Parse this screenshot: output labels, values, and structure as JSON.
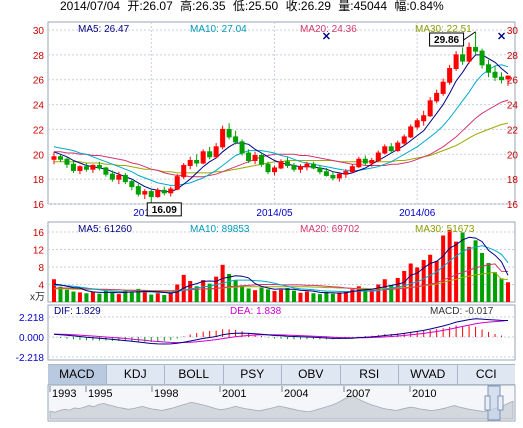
{
  "header": {
    "date": "2014/07/04",
    "open_label": "开:",
    "open": "26.07",
    "high_label": "高:",
    "high": "26.35",
    "low_label": "低:",
    "low": "25.50",
    "close_label": "收:",
    "close": "26.29",
    "volume_label": "量:",
    "volume": "45044",
    "change_label": "幅:",
    "change": "0.84%"
  },
  "price_panel": {
    "ma_labels": [
      {
        "text": "MA5: 26.47",
        "color": "#000080"
      },
      {
        "text": "MA10: 27.04",
        "color": "#009ab8"
      },
      {
        "text": "MA20: 24.36",
        "color": "#d6356c"
      },
      {
        "text": "MA30: 22.51",
        "color": "#8c9c00"
      }
    ],
    "y_ticks": [
      "30",
      "28",
      "26",
      "24",
      "22",
      "20",
      "18",
      "16"
    ],
    "x_labels": [
      "2014/04",
      "2014/05",
      "2014/06"
    ],
    "high_annotation": "29.86",
    "low_annotation": "16.09"
  },
  "volume_panel": {
    "ma_labels": [
      {
        "text": "MA5: 61260",
        "color": "#000080"
      },
      {
        "text": "MA10: 89853",
        "color": "#009ab8"
      },
      {
        "text": "MA20: 69702",
        "color": "#d6356c"
      },
      {
        "text": "MA30: 51673",
        "color": "#8c9c00"
      }
    ],
    "y_ticks": [
      "16",
      "12",
      "8",
      "4"
    ],
    "unit": "x万"
  },
  "macd_panel": {
    "dif_label": "DIF: 1.829",
    "dea_label": "DEA: 1.838",
    "macd_label": "MACD: -0.017",
    "y_ticks": [
      "2.218",
      "0.000",
      "-2.218"
    ]
  },
  "tabs": [
    "MACD",
    "KDJ",
    "BOLL",
    "PSY",
    "OBV",
    "RSI",
    "WVAD",
    "CCI"
  ],
  "active_tab": "MACD",
  "overview_years": [
    "1993",
    "1995",
    "1998",
    "2001",
    "2004",
    "2007",
    "2010"
  ],
  "colors": {
    "up": "#ff0000",
    "down": "#00a000",
    "ma5": "#000080",
    "ma10": "#00aacc",
    "ma20": "#d6356c",
    "ma30": "#9aaa00",
    "grid": "#c8d0dc",
    "axis_text_red": "#cc0000",
    "axis_text_blue": "#0000cc"
  },
  "chart_data": {
    "type": "candlestick",
    "title": "",
    "x_tick_labels": [
      "2014/04",
      "2014/05",
      "2014/06"
    ],
    "y_range": [
      16,
      30
    ],
    "candles": [
      [
        19.6,
        20.2,
        19.2,
        19.8
      ],
      [
        19.8,
        20.0,
        19.4,
        19.6
      ],
      [
        19.6,
        19.8,
        18.9,
        19.2
      ],
      [
        19.2,
        19.5,
        18.5,
        18.7
      ],
      [
        18.7,
        19.1,
        18.4,
        19.0
      ],
      [
        19.0,
        19.3,
        18.6,
        18.8
      ],
      [
        18.8,
        19.2,
        18.5,
        19.1
      ],
      [
        19.1,
        19.4,
        18.7,
        18.9
      ],
      [
        18.9,
        19.0,
        18.2,
        18.4
      ],
      [
        18.4,
        18.7,
        17.8,
        18.0
      ],
      [
        18.0,
        18.6,
        17.6,
        18.3
      ],
      [
        18.3,
        18.5,
        17.6,
        17.8
      ],
      [
        17.8,
        18.0,
        17.1,
        17.4
      ],
      [
        17.4,
        17.6,
        16.6,
        16.8
      ],
      [
        16.8,
        17.2,
        16.4,
        17.0
      ],
      [
        17.0,
        17.2,
        16.09,
        16.6
      ],
      [
        16.6,
        17.3,
        16.5,
        17.1
      ],
      [
        17.1,
        17.4,
        16.7,
        16.9
      ],
      [
        16.9,
        17.4,
        16.6,
        17.2
      ],
      [
        17.2,
        18.4,
        17.1,
        18.2
      ],
      [
        18.2,
        19.3,
        18.0,
        19.1
      ],
      [
        19.1,
        19.8,
        18.8,
        19.5
      ],
      [
        19.5,
        20.0,
        19.0,
        19.3
      ],
      [
        19.3,
        20.4,
        19.2,
        20.2
      ],
      [
        20.2,
        20.6,
        19.6,
        19.8
      ],
      [
        19.8,
        20.9,
        19.7,
        20.6
      ],
      [
        20.6,
        22.3,
        20.4,
        22.0
      ],
      [
        22.0,
        22.5,
        21.2,
        21.4
      ],
      [
        21.4,
        21.9,
        20.8,
        21.0
      ],
      [
        21.0,
        21.2,
        19.9,
        20.1
      ],
      [
        20.1,
        20.4,
        19.3,
        19.5
      ],
      [
        19.5,
        20.2,
        19.2,
        19.9
      ],
      [
        19.9,
        20.1,
        19.0,
        19.2
      ],
      [
        19.2,
        19.4,
        18.4,
        18.6
      ],
      [
        18.6,
        19.1,
        18.3,
        18.9
      ],
      [
        18.9,
        19.6,
        18.8,
        19.4
      ],
      [
        19.4,
        19.8,
        18.9,
        19.1
      ],
      [
        19.1,
        19.3,
        18.6,
        18.8
      ],
      [
        18.8,
        19.2,
        18.5,
        19.0
      ],
      [
        19.0,
        19.4,
        18.7,
        19.2
      ],
      [
        19.2,
        19.4,
        18.8,
        18.9
      ],
      [
        18.9,
        19.1,
        18.4,
        18.6
      ],
      [
        18.6,
        18.9,
        18.2,
        18.3
      ],
      [
        18.3,
        18.6,
        17.9,
        18.1
      ],
      [
        18.1,
        18.5,
        17.8,
        18.4
      ],
      [
        18.4,
        18.8,
        18.1,
        18.6
      ],
      [
        18.6,
        19.2,
        18.5,
        19.0
      ],
      [
        19.0,
        19.8,
        18.9,
        19.6
      ],
      [
        19.6,
        19.9,
        19.1,
        19.3
      ],
      [
        19.3,
        19.7,
        19.0,
        19.5
      ],
      [
        19.5,
        20.3,
        19.4,
        20.1
      ],
      [
        20.1,
        20.8,
        20.0,
        20.6
      ],
      [
        20.6,
        20.9,
        20.1,
        20.3
      ],
      [
        20.3,
        21.1,
        20.2,
        20.9
      ],
      [
        20.9,
        21.6,
        20.7,
        21.4
      ],
      [
        21.4,
        22.4,
        21.3,
        22.2
      ],
      [
        22.2,
        22.9,
        22.0,
        22.7
      ],
      [
        22.7,
        23.5,
        22.3,
        23.1
      ],
      [
        23.1,
        24.6,
        23.0,
        24.3
      ],
      [
        24.3,
        25.2,
        24.1,
        24.9
      ],
      [
        24.9,
        26.1,
        24.7,
        25.8
      ],
      [
        25.8,
        27.2,
        25.6,
        26.9
      ],
      [
        26.9,
        28.3,
        26.7,
        28.0
      ],
      [
        28.0,
        28.6,
        27.2,
        27.5
      ],
      [
        27.5,
        29.0,
        27.3,
        28.6
      ],
      [
        28.6,
        29.86,
        28.0,
        28.3
      ],
      [
        28.3,
        28.5,
        26.9,
        27.2
      ],
      [
        27.2,
        27.6,
        26.2,
        26.6
      ],
      [
        26.6,
        27.1,
        25.9,
        26.2
      ],
      [
        26.2,
        26.6,
        25.7,
        26.0
      ],
      [
        26.07,
        26.35,
        25.5,
        26.29
      ]
    ],
    "ma5": [
      20.2,
      20.0,
      19.8,
      19.5,
      19.3,
      19.1,
      19.0,
      18.9,
      18.8,
      18.6,
      18.4,
      18.2,
      18.0,
      17.7,
      17.4,
      17.2,
      17.1,
      17.0,
      17.0,
      17.2,
      17.6,
      18.0,
      18.5,
      19.0,
      19.4,
      19.7,
      20.2,
      20.6,
      20.9,
      20.9,
      20.8,
      20.4,
      20.1,
      19.8,
      19.5,
      19.3,
      19.2,
      19.1,
      19.0,
      19.0,
      19.0,
      18.9,
      18.8,
      18.6,
      18.5,
      18.4,
      18.5,
      18.7,
      18.9,
      19.2,
      19.5,
      19.8,
      20.1,
      20.4,
      20.7,
      21.1,
      21.5,
      21.9,
      22.6,
      23.3,
      24.0,
      24.9,
      25.9,
      26.6,
      27.4,
      28.0,
      28.0,
      27.7,
      27.4,
      26.9,
      26.47
    ],
    "ma10": [
      20.6,
      20.5,
      20.4,
      20.3,
      20.1,
      20.0,
      19.8,
      19.6,
      19.4,
      19.2,
      19.0,
      18.8,
      18.6,
      18.3,
      18.1,
      17.9,
      17.7,
      17.6,
      17.5,
      17.5,
      17.6,
      17.7,
      17.9,
      18.1,
      18.4,
      18.7,
      19.1,
      19.5,
      19.9,
      20.1,
      20.3,
      20.3,
      20.3,
      20.2,
      20.1,
      19.9,
      19.8,
      19.6,
      19.4,
      19.3,
      19.2,
      19.1,
      19.0,
      18.9,
      18.8,
      18.7,
      18.7,
      18.7,
      18.8,
      18.9,
      19.0,
      19.2,
      19.4,
      19.7,
      20.0,
      20.3,
      20.6,
      21.0,
      21.4,
      21.8,
      22.3,
      22.9,
      23.6,
      24.3,
      25.0,
      25.8,
      26.4,
      26.8,
      27.1,
      27.2,
      27.04
    ],
    "ma20": [
      20.2,
      20.2,
      20.1,
      20.1,
      20.0,
      20.0,
      19.9,
      19.9,
      19.8,
      19.7,
      19.6,
      19.5,
      19.3,
      19.2,
      19.0,
      18.8,
      18.7,
      18.5,
      18.4,
      18.3,
      18.3,
      18.2,
      18.2,
      18.2,
      18.3,
      18.4,
      18.6,
      18.8,
      19.0,
      19.2,
      19.4,
      19.6,
      19.8,
      19.9,
      20.0,
      20.0,
      20.0,
      20.0,
      19.9,
      19.9,
      19.8,
      19.7,
      19.6,
      19.5,
      19.4,
      19.3,
      19.2,
      19.2,
      19.1,
      19.1,
      19.1,
      19.1,
      19.2,
      19.2,
      19.3,
      19.4,
      19.6,
      19.8,
      20.0,
      20.3,
      20.6,
      21.0,
      21.4,
      21.9,
      22.4,
      22.9,
      23.3,
      23.6,
      23.9,
      24.2,
      24.36
    ],
    "ma30": [
      19.4,
      19.4,
      19.4,
      19.4,
      19.4,
      19.3,
      19.3,
      19.3,
      19.2,
      19.2,
      19.1,
      19.1,
      19.0,
      18.9,
      18.8,
      18.8,
      18.7,
      18.6,
      18.6,
      18.5,
      18.5,
      18.5,
      18.5,
      18.5,
      18.5,
      18.6,
      18.6,
      18.7,
      18.8,
      18.9,
      19.0,
      19.1,
      19.2,
      19.3,
      19.4,
      19.4,
      19.5,
      19.5,
      19.5,
      19.5,
      19.5,
      19.5,
      19.5,
      19.5,
      19.4,
      19.4,
      19.4,
      19.4,
      19.4,
      19.4,
      19.4,
      19.4,
      19.4,
      19.5,
      19.5,
      19.6,
      19.7,
      19.8,
      19.9,
      20.1,
      20.3,
      20.5,
      20.7,
      21.0,
      21.3,
      21.6,
      21.8,
      22.0,
      22.2,
      22.4,
      22.51
    ],
    "volume": [
      5.2,
      3.5,
      2.8,
      2.4,
      2.2,
      2.0,
      2.3,
      1.9,
      2.5,
      2.1,
      1.8,
      2.6,
      2.2,
      3.0,
      2.4,
      1.7,
      2.0,
      1.6,
      2.2,
      4.0,
      6.2,
      4.8,
      3.6,
      5.0,
      4.2,
      5.8,
      8.5,
      6.4,
      4.9,
      3.8,
      3.1,
      2.7,
      3.3,
      2.9,
      2.5,
      2.8,
      3.2,
      2.6,
      2.1,
      2.4,
      2.0,
      1.8,
      2.3,
      1.9,
      2.2,
      2.5,
      2.9,
      3.6,
      3.0,
      2.7,
      4.0,
      5.2,
      3.9,
      5.5,
      7.1,
      8.8,
      7.9,
      9.6,
      10.8,
      9.4,
      15.2,
      16.5,
      13.8,
      15.9,
      12.6,
      14.1,
      11.2,
      8.9,
      6.8,
      5.4,
      4.5
    ],
    "volume_ma5": [
      4.1,
      3.9,
      3.6,
      3.3,
      3.2,
      2.6,
      2.3,
      2.2,
      2.2,
      2.2,
      2.1,
      2.2,
      2.3,
      2.3,
      2.4,
      2.4,
      2.3,
      2.2,
      2.0,
      2.3,
      3.2,
      3.8,
      4.2,
      4.7,
      4.8,
      4.7,
      5.4,
      5.7,
      6.0,
      5.9,
      5.5,
      4.2,
      3.6,
      3.2,
      2.9,
      3.0,
      2.9,
      2.9,
      2.7,
      2.6,
      2.5,
      2.2,
      2.1,
      2.1,
      2.0,
      2.1,
      2.4,
      2.6,
      2.8,
      2.9,
      3.2,
      3.5,
      3.8,
      4.1,
      4.5,
      6.1,
      6.6,
      7.8,
      8.8,
      9.3,
      10.5,
      12.3,
      13.1,
      14.2,
      14.8,
      14.6,
      13.8,
      11.8,
      10.7,
      9.2,
      6.1
    ],
    "volume_ma10": [
      3.8,
      3.8,
      3.7,
      3.6,
      3.4,
      3.2,
      3.0,
      2.8,
      2.6,
      2.5,
      2.4,
      2.3,
      2.3,
      2.3,
      2.3,
      2.3,
      2.2,
      2.2,
      2.2,
      2.4,
      2.7,
      3.0,
      3.2,
      3.5,
      3.6,
      3.9,
      4.3,
      4.7,
      5.0,
      5.0,
      5.0,
      4.9,
      4.8,
      4.6,
      4.3,
      3.9,
      3.6,
      3.2,
      3.0,
      2.9,
      2.8,
      2.6,
      2.5,
      2.5,
      2.4,
      2.4,
      2.4,
      2.5,
      2.5,
      2.5,
      2.6,
      2.9,
      3.2,
      3.4,
      3.7,
      4.2,
      4.6,
      5.3,
      6.1,
      6.9,
      8.1,
      9.4,
      10.5,
      11.5,
      12.2,
      12.5,
      12.9,
      12.4,
      11.8,
      10.9,
      8.99
    ],
    "volume_ma20": [
      3.2,
      3.2,
      3.2,
      3.1,
      3.1,
      3.0,
      3.0,
      2.9,
      2.9,
      2.8,
      2.8,
      2.7,
      2.7,
      2.6,
      2.6,
      2.5,
      2.5,
      2.5,
      2.5,
      2.6,
      2.7,
      2.8,
      2.9,
      3.0,
      3.0,
      3.1,
      3.3,
      3.5,
      3.6,
      3.7,
      3.8,
      3.9,
      4.0,
      4.0,
      4.0,
      3.9,
      3.9,
      3.9,
      3.9,
      3.8,
      3.8,
      3.7,
      3.6,
      3.5,
      3.4,
      3.2,
      3.1,
      2.9,
      2.8,
      2.7,
      2.7,
      2.8,
      2.9,
      3.0,
      3.1,
      3.3,
      3.5,
      3.8,
      4.1,
      4.4,
      5.0,
      5.6,
      6.2,
      6.8,
      7.3,
      7.8,
      8.2,
      8.5,
      8.7,
      7.0,
      6.97
    ],
    "volume_ma30": [
      3.0,
      3.0,
      3.0,
      2.9,
      2.9,
      2.9,
      2.9,
      2.8,
      2.8,
      2.8,
      2.8,
      2.7,
      2.7,
      2.7,
      2.7,
      2.6,
      2.6,
      2.6,
      2.6,
      2.7,
      2.8,
      2.8,
      2.9,
      3.0,
      3.0,
      3.1,
      3.2,
      3.3,
      3.4,
      3.5,
      3.5,
      3.5,
      3.5,
      3.5,
      3.5,
      3.5,
      3.5,
      3.5,
      3.5,
      3.5,
      3.4,
      3.4,
      3.3,
      3.3,
      3.2,
      3.2,
      3.1,
      3.1,
      3.1,
      3.0,
      3.0,
      3.1,
      3.1,
      3.2,
      3.3,
      3.4,
      3.5,
      3.7,
      3.9,
      4.1,
      4.5,
      4.9,
      5.2,
      5.6,
      5.9,
      6.2,
      6.4,
      6.6,
      6.8,
      5.2,
      5.17
    ],
    "dif": [
      0.3,
      0.26,
      0.2,
      0.12,
      0.05,
      -0.02,
      -0.08,
      -0.14,
      -0.2,
      -0.27,
      -0.33,
      -0.4,
      -0.47,
      -0.56,
      -0.64,
      -0.72,
      -0.76,
      -0.78,
      -0.77,
      -0.7,
      -0.58,
      -0.44,
      -0.31,
      -0.16,
      -0.05,
      0.06,
      0.25,
      0.36,
      0.42,
      0.43,
      0.4,
      0.36,
      0.31,
      0.23,
      0.17,
      0.14,
      0.09,
      0.05,
      0.02,
      0.0,
      -0.03,
      -0.07,
      -0.11,
      -0.15,
      -0.16,
      -0.16,
      -0.13,
      -0.07,
      -0.03,
      0.01,
      0.08,
      0.17,
      0.23,
      0.31,
      0.4,
      0.51,
      0.62,
      0.73,
      0.89,
      1.05,
      1.22,
      1.42,
      1.65,
      1.78,
      1.93,
      2.02,
      1.99,
      1.93,
      1.88,
      1.84,
      1.829
    ],
    "dea": [
      0.32,
      0.31,
      0.29,
      0.25,
      0.21,
      0.16,
      0.11,
      0.06,
      0.0,
      -0.05,
      -0.11,
      -0.17,
      -0.23,
      -0.3,
      -0.37,
      -0.44,
      -0.5,
      -0.56,
      -0.6,
      -0.62,
      -0.61,
      -0.58,
      -0.53,
      -0.46,
      -0.38,
      -0.29,
      -0.18,
      -0.07,
      0.03,
      0.11,
      0.17,
      0.22,
      0.25,
      0.26,
      0.25,
      0.23,
      0.21,
      0.18,
      0.15,
      0.12,
      0.09,
      0.06,
      0.02,
      -0.02,
      -0.05,
      -0.07,
      -0.09,
      -0.09,
      -0.08,
      -0.06,
      -0.03,
      0.01,
      0.06,
      0.11,
      0.17,
      0.24,
      0.32,
      0.4,
      0.5,
      0.61,
      0.73,
      0.87,
      1.02,
      1.17,
      1.32,
      1.46,
      1.57,
      1.65,
      1.71,
      1.76,
      1.838
    ],
    "macd": [
      -0.02,
      -0.05,
      -0.09,
      -0.13,
      -0.16,
      -0.18,
      -0.19,
      -0.2,
      -0.2,
      -0.22,
      -0.22,
      -0.23,
      -0.24,
      -0.26,
      -0.27,
      -0.28,
      -0.26,
      -0.22,
      -0.17,
      -0.08,
      0.03,
      0.14,
      0.22,
      0.3,
      0.33,
      0.35,
      0.43,
      0.43,
      0.39,
      0.32,
      0.23,
      0.14,
      0.06,
      -0.03,
      -0.08,
      -0.09,
      -0.12,
      -0.13,
      -0.13,
      -0.12,
      -0.12,
      -0.13,
      -0.13,
      -0.13,
      -0.11,
      -0.09,
      -0.04,
      0.02,
      0.05,
      0.07,
      0.11,
      0.16,
      0.17,
      0.2,
      0.23,
      0.27,
      0.3,
      0.33,
      0.39,
      0.44,
      0.49,
      0.55,
      0.63,
      0.61,
      0.61,
      0.56,
      0.42,
      0.28,
      0.17,
      0.08,
      -0.017
    ],
    "overview": [
      2.1,
      1.8,
      2.3,
      2.6,
      2.4,
      3.0,
      2.8,
      3.2,
      3.6,
      3.3,
      3.9,
      4.2,
      3.8,
      3.5,
      3.1,
      2.9,
      2.6,
      2.8,
      3.1,
      3.4,
      3.0,
      2.7,
      2.5,
      2.3,
      2.6,
      2.9,
      3.3,
      3.7,
      4.1,
      4.5,
      4.2,
      3.9,
      3.6,
      3.2,
      2.8,
      2.5,
      2.7,
      3.0,
      3.4,
      3.1,
      2.8,
      2.6,
      2.4,
      2.2,
      2.5,
      2.8,
      3.1,
      3.5,
      3.2,
      2.9,
      2.6,
      2.3,
      2.1,
      1.9,
      2.2,
      2.6,
      3.0,
      3.4,
      3.8,
      4.4,
      5.1,
      5.8,
      6.4,
      5.6,
      4.9,
      4.3,
      3.8,
      3.4,
      3.0,
      2.7,
      2.5,
      2.3,
      2.6,
      2.9,
      3.2,
      3.0,
      2.7,
      2.5,
      2.3,
      2.4,
      2.6,
      2.9,
      3.3,
      3.6,
      3.2,
      2.9,
      2.6,
      2.4,
      2.2,
      2.0,
      2.3,
      2.7,
      3.1,
      3.6,
      4.2,
      4.8
    ]
  }
}
